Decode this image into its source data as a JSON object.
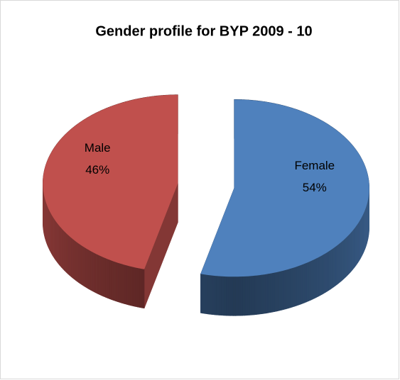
{
  "chart_data": {
    "type": "pie",
    "title": "Gender profile for BYP 2009 - 10",
    "categories": [
      "Male",
      "Female"
    ],
    "values": [
      46,
      54
    ],
    "value_labels": [
      "46%",
      "54%"
    ],
    "colors": [
      "#c0504d",
      "#4f81bd"
    ]
  }
}
